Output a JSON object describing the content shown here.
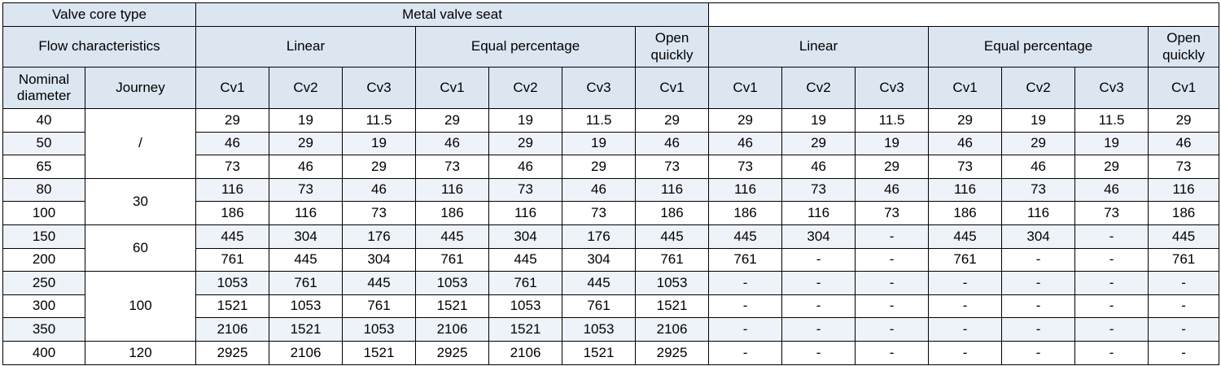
{
  "header": {
    "valve_core_type": "Valve core type",
    "metal_valve_seat": "Metal valve seat",
    "second_group": "",
    "flow_characteristics": "Flow characteristics",
    "linear": "Linear",
    "equal_percentage": "Equal percentage",
    "open_quickly": "Open quickly",
    "nominal_diameter": "Nominal diameter",
    "journey": "Journey",
    "cv1": "Cv1",
    "cv2": "Cv2",
    "cv3": "Cv3"
  },
  "journeys": [
    "/",
    "30",
    "60",
    "100",
    "120"
  ],
  "rows": [
    {
      "dn": "40",
      "values": [
        "29",
        "19",
        "11.5",
        "29",
        "19",
        "11.5",
        "29",
        "29",
        "19",
        "11.5",
        "29",
        "19",
        "11.5",
        "29"
      ]
    },
    {
      "dn": "50",
      "values": [
        "46",
        "29",
        "19",
        "46",
        "29",
        "19",
        "46",
        "46",
        "29",
        "19",
        "46",
        "29",
        "19",
        "46"
      ]
    },
    {
      "dn": "65",
      "values": [
        "73",
        "46",
        "29",
        "73",
        "46",
        "29",
        "73",
        "73",
        "46",
        "29",
        "73",
        "46",
        "29",
        "73"
      ]
    },
    {
      "dn": "80",
      "values": [
        "116",
        "73",
        "46",
        "116",
        "73",
        "46",
        "116",
        "116",
        "73",
        "46",
        "116",
        "73",
        "46",
        "116"
      ]
    },
    {
      "dn": "100",
      "values": [
        "186",
        "116",
        "73",
        "186",
        "116",
        "73",
        "186",
        "186",
        "116",
        "73",
        "186",
        "116",
        "73",
        "186"
      ]
    },
    {
      "dn": "150",
      "values": [
        "445",
        "304",
        "176",
        "445",
        "304",
        "176",
        "445",
        "445",
        "304",
        "-",
        "445",
        "304",
        "-",
        "445"
      ]
    },
    {
      "dn": "200",
      "values": [
        "761",
        "445",
        "304",
        "761",
        "445",
        "304",
        "761",
        "761",
        "-",
        "-",
        "761",
        "-",
        "-",
        "761"
      ]
    },
    {
      "dn": "250",
      "values": [
        "1053",
        "761",
        "445",
        "1053",
        "761",
        "445",
        "1053",
        "-",
        "-",
        "-",
        "-",
        "-",
        "-",
        "-"
      ]
    },
    {
      "dn": "300",
      "values": [
        "1521",
        "1053",
        "761",
        "1521",
        "1053",
        "761",
        "1521",
        "-",
        "-",
        "-",
        "-",
        "-",
        "-",
        "-"
      ]
    },
    {
      "dn": "350",
      "values": [
        "2106",
        "1521",
        "1053",
        "2106",
        "1521",
        "1053",
        "2106",
        "-",
        "-",
        "-",
        "-",
        "-",
        "-",
        "-"
      ]
    },
    {
      "dn": "400",
      "values": [
        "2925",
        "2106",
        "1521",
        "2925",
        "2106",
        "1521",
        "2925",
        "-",
        "-",
        "-",
        "-",
        "-",
        "-",
        "-"
      ]
    }
  ]
}
